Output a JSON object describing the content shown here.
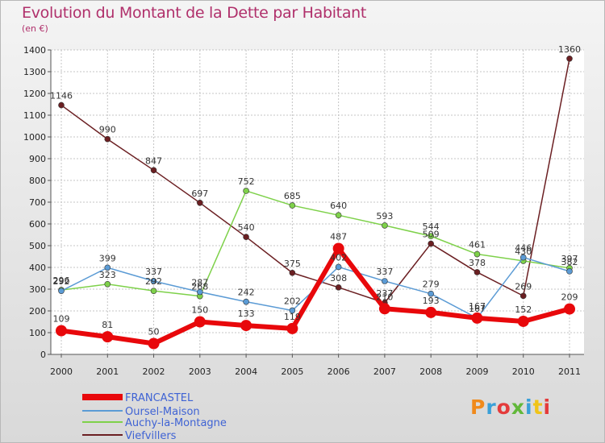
{
  "header": {
    "title": "Evolution du Montant de la Dette par Habitant",
    "subtitle": "(en €)"
  },
  "logo": {
    "text": "Proxiti",
    "colors": [
      "#f08a1c",
      "#3aa0d8",
      "#e43b3b",
      "#62b83a",
      "#3aa0d8",
      "#f0c419",
      "#e43b3b"
    ]
  },
  "chart_data": {
    "type": "line",
    "x": [
      "2000",
      "2001",
      "2002",
      "2003",
      "2004",
      "2005",
      "2006",
      "2007",
      "2008",
      "2009",
      "2010",
      "2011"
    ],
    "ylim": [
      0,
      1400
    ],
    "yticks": [
      0,
      100,
      200,
      300,
      400,
      500,
      600,
      700,
      800,
      900,
      1000,
      1100,
      1200,
      1300,
      1400
    ],
    "grid": true,
    "legend": "bottom-left",
    "series": [
      {
        "name": "FRANCASTEL",
        "color": "#e8080b",
        "values": [
          109,
          81,
          50,
          150,
          133,
          119,
          487,
          210,
          193,
          167,
          152,
          209
        ]
      },
      {
        "name": "Oursel-Maison",
        "color": "#5b9bd5",
        "values": [
          292,
          399,
          337,
          287,
          242,
          202,
          402,
          337,
          279,
          167,
          446,
          382
        ]
      },
      {
        "name": "Auchy-la-Montagne",
        "color": "#7ed14a",
        "values": [
          296,
          323,
          292,
          268,
          752,
          685,
          640,
          593,
          544,
          461,
          430,
          397
        ]
      },
      {
        "name": "Viefvillers",
        "color": "#6b1f22",
        "values": [
          1146,
          990,
          847,
          697,
          540,
          375,
          308,
          237,
          509,
          378,
          269,
          1360
        ]
      }
    ]
  }
}
